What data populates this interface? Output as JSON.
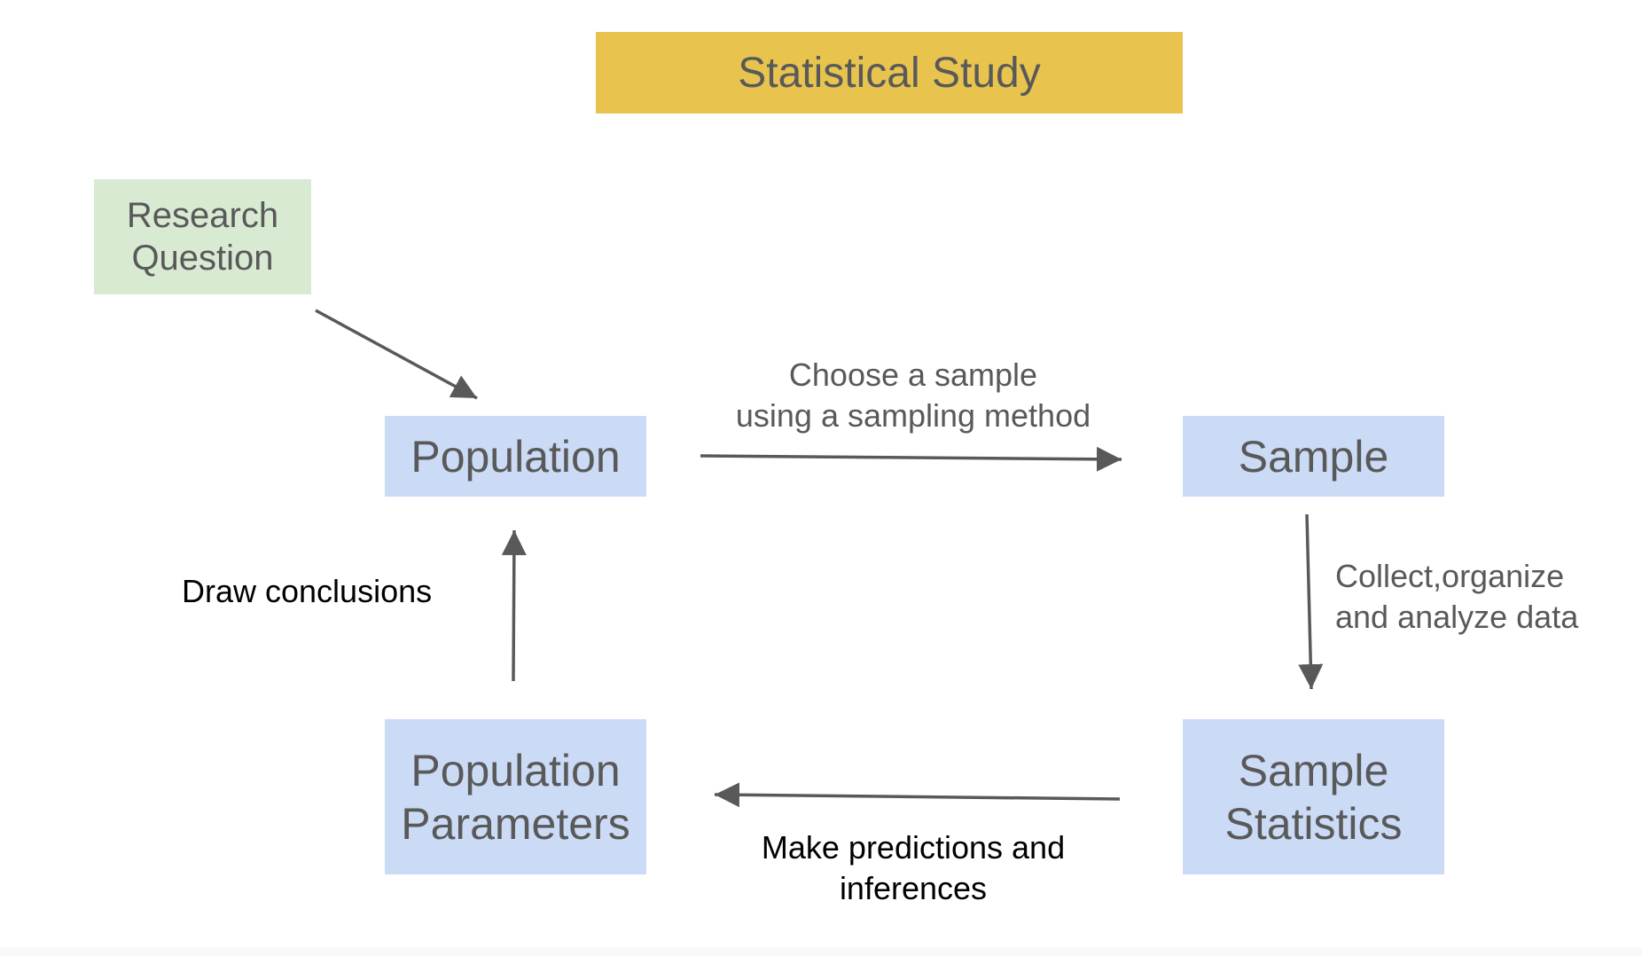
{
  "diagram": {
    "title": "Statistical Study",
    "nodes": {
      "research_question": [
        "Research",
        "Question"
      ],
      "population": "Population",
      "sample": "Sample",
      "population_parameters": [
        "Population",
        "Parameters"
      ],
      "sample_statistics": [
        "Sample",
        "Statistics"
      ]
    },
    "edges": {
      "choose_sample": [
        "Choose a sample",
        "using a sampling method"
      ],
      "collect_data": [
        "Collect,organize",
        "and analyze data"
      ],
      "predictions": [
        "Make predictions and",
        "inferences"
      ],
      "draw_conclusions": "Draw conclusions"
    },
    "colors": {
      "title_fill": "#e8c44f",
      "research_fill": "#d9ead3",
      "node_fill": "#cbdaf5",
      "text": "#595959",
      "arrow": "#595959"
    }
  }
}
